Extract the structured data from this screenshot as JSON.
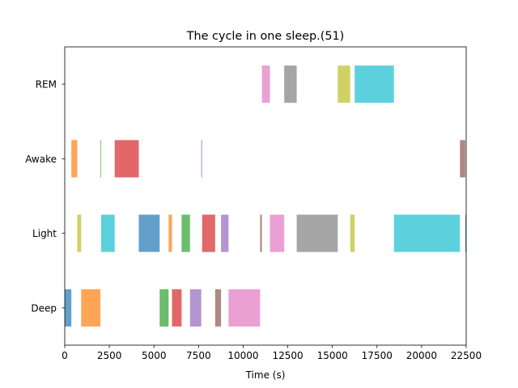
{
  "chart_data": {
    "type": "timeline",
    "title": "The cycle in one sleep.(51)",
    "xlabel": "Time (s)",
    "ylabel": "",
    "xlim": [
      0,
      22500
    ],
    "xticks": [
      0,
      2500,
      5000,
      7500,
      10000,
      12500,
      15000,
      17500,
      20000,
      22500
    ],
    "xtick_labels": [
      "0",
      "2500",
      "5000",
      "7500",
      "10000",
      "12500",
      "15000",
      "17500",
      "20000",
      "22500"
    ],
    "categories": [
      "Deep",
      "Light",
      "Awake",
      "REM"
    ],
    "grid": false,
    "legend": "none",
    "segments": [
      {
        "stage": "Deep",
        "start": 0,
        "end": 370,
        "color": "#1f77b4"
      },
      {
        "stage": "Awake",
        "start": 370,
        "end": 700,
        "color": "#ff7f0e"
      },
      {
        "stage": "Light",
        "start": 700,
        "end": 920,
        "color": "#bcbd22"
      },
      {
        "stage": "Deep",
        "start": 920,
        "end": 2000,
        "color": "#ff7f0e"
      },
      {
        "stage": "Awake",
        "start": 2000,
        "end": 2040,
        "color": "#2ca02c"
      },
      {
        "stage": "Light",
        "start": 2040,
        "end": 2800,
        "color": "#17becf"
      },
      {
        "stage": "Awake",
        "start": 2800,
        "end": 4150,
        "color": "#d62728"
      },
      {
        "stage": "Light",
        "start": 4150,
        "end": 5320,
        "color": "#1f77b4"
      },
      {
        "stage": "Deep",
        "start": 5320,
        "end": 5820,
        "color": "#2ca02c"
      },
      {
        "stage": "Light",
        "start": 5820,
        "end": 6010,
        "color": "#ff7f0e"
      },
      {
        "stage": "Deep",
        "start": 6010,
        "end": 6550,
        "color": "#d62728"
      },
      {
        "stage": "Light",
        "start": 6550,
        "end": 7020,
        "color": "#2ca02c"
      },
      {
        "stage": "Deep",
        "start": 7020,
        "end": 7650,
        "color": "#9467bd"
      },
      {
        "stage": "Awake",
        "start": 7650,
        "end": 7700,
        "color": "#9467bd"
      },
      {
        "stage": "Light",
        "start": 7700,
        "end": 8430,
        "color": "#d62728"
      },
      {
        "stage": "Deep",
        "start": 8430,
        "end": 8760,
        "color": "#8c564b"
      },
      {
        "stage": "Light",
        "start": 8760,
        "end": 9180,
        "color": "#9467bd"
      },
      {
        "stage": "Deep",
        "start": 9180,
        "end": 10950,
        "color": "#e377c2"
      },
      {
        "stage": "Light",
        "start": 10950,
        "end": 11050,
        "color": "#8c564b"
      },
      {
        "stage": "REM",
        "start": 11050,
        "end": 11500,
        "color": "#e377c2"
      },
      {
        "stage": "Light",
        "start": 11500,
        "end": 12300,
        "color": "#e377c2"
      },
      {
        "stage": "REM",
        "start": 12300,
        "end": 13000,
        "color": "#7f7f7f"
      },
      {
        "stage": "Light",
        "start": 13000,
        "end": 15300,
        "color": "#7f7f7f"
      },
      {
        "stage": "REM",
        "start": 15300,
        "end": 16000,
        "color": "#bcbd22"
      },
      {
        "stage": "Light",
        "start": 16000,
        "end": 16250,
        "color": "#bcbd22"
      },
      {
        "stage": "REM",
        "start": 16250,
        "end": 18450,
        "color": "#17becf"
      },
      {
        "stage": "Light",
        "start": 18450,
        "end": 22150,
        "color": "#17becf"
      },
      {
        "stage": "Awake",
        "start": 22150,
        "end": 22450,
        "color": "#8c564b"
      },
      {
        "stage": "Light",
        "start": 22450,
        "end": 22500,
        "color": "#1f77b4"
      }
    ]
  }
}
